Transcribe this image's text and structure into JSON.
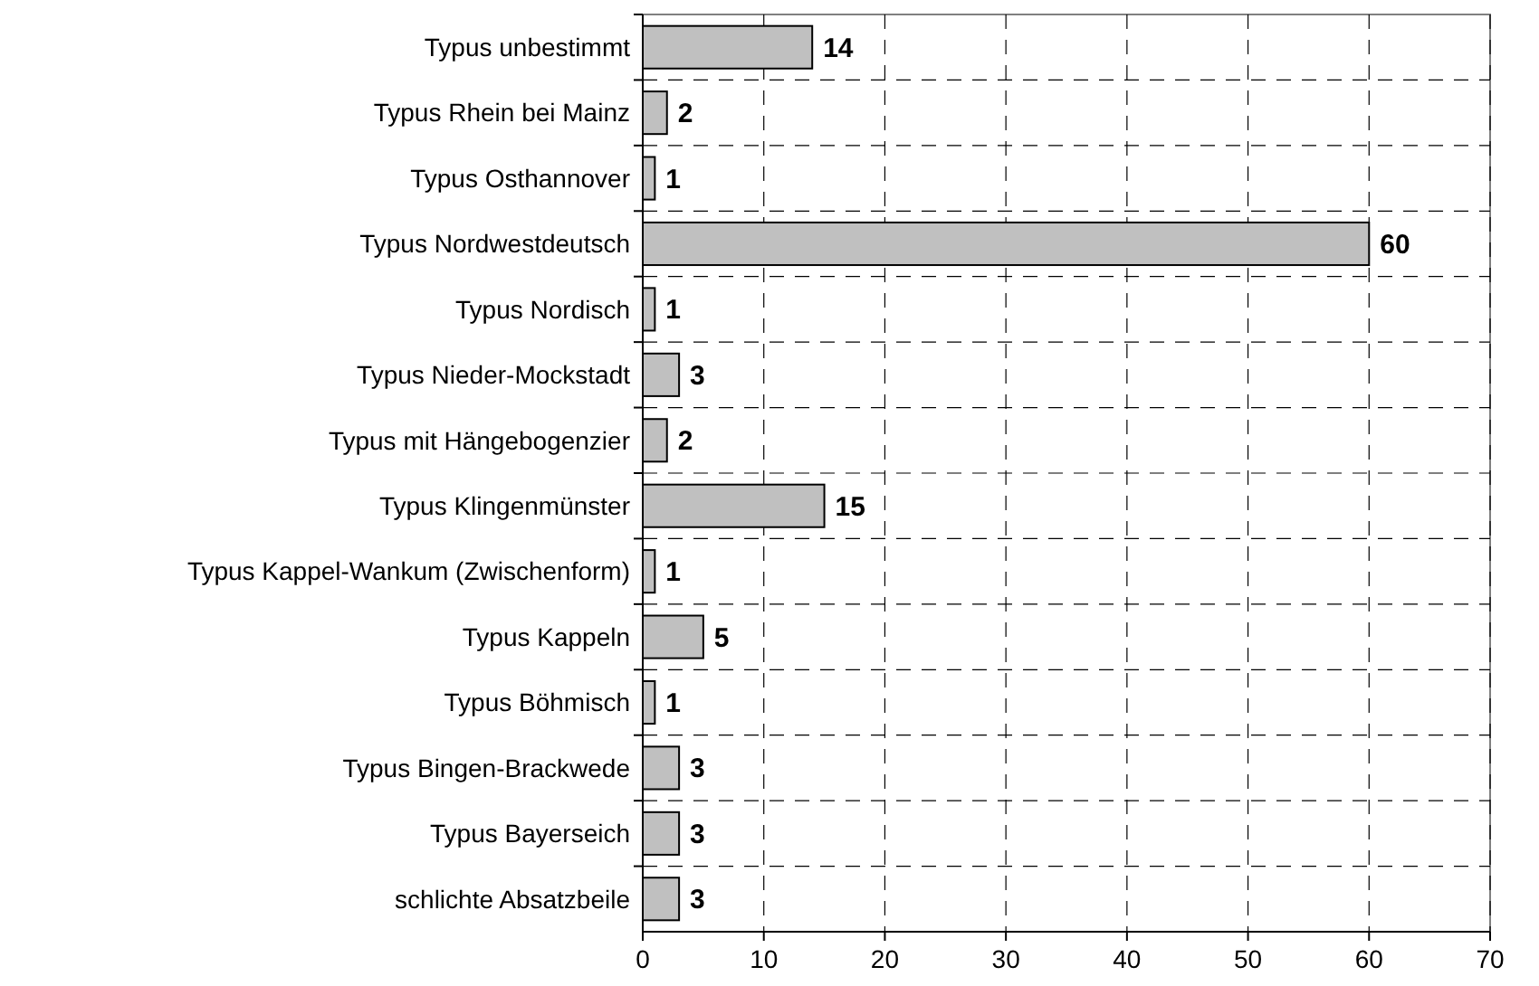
{
  "chart_data": {
    "type": "bar",
    "orientation": "horizontal",
    "categories": [
      "Typus unbestimmt",
      "Typus Rhein bei Mainz",
      "Typus Osthannover",
      "Typus Nordwestdeutsch",
      "Typus Nordisch",
      "Typus Nieder-Mockstadt",
      "Typus mit Hängebogenzier",
      "Typus Klingenmünster",
      "Typus Kappel-Wankum (Zwischenform)",
      "Typus Kappeln",
      "Typus Böhmisch",
      "Typus Bingen-Brackwede",
      "Typus Bayerseich",
      "schlichte Absatzbeile"
    ],
    "values": [
      14,
      2,
      1,
      60,
      1,
      3,
      2,
      15,
      1,
      5,
      1,
      3,
      3,
      3
    ],
    "color": "#c0c0c0",
    "xlim": [
      0,
      70
    ],
    "xticks": [
      0,
      10,
      20,
      30,
      40,
      50,
      60,
      70
    ],
    "grid": true,
    "data_labels": true
  }
}
